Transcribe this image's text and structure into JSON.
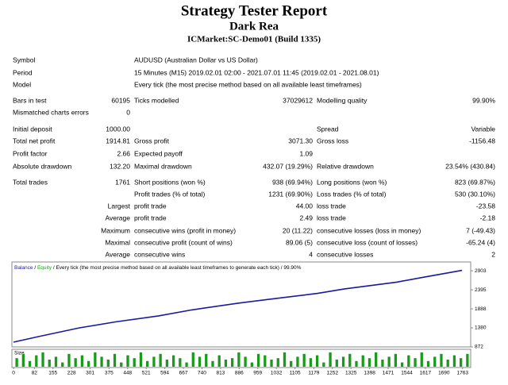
{
  "header": {
    "title": "Strategy Tester Report",
    "subtitle": "Dark Rea",
    "server": "ICMarket:SC-Demo01 (Build 1335)"
  },
  "table": {
    "rows": [
      [
        "Symbol",
        null,
        "AUDUSD (Australian Dollar vs US Dollar)",
        null,
        null,
        null
      ],
      [
        "Period",
        null,
        "15 Minutes (M15) 2019.02.01 02:00 - 2021.07.01 11:45 (2019.02.01 - 2021.08.01)",
        null,
        null,
        null
      ],
      [
        "Model",
        null,
        "Every tick (the most precise method based on all available least timeframes)",
        null,
        null,
        null
      ],
      [
        "Bars in test",
        "60195",
        "Ticks modelled",
        "37029612",
        "Modelling quality",
        "99.90%"
      ],
      [
        "Mismatched charts errors",
        "0",
        null,
        null,
        null,
        null
      ],
      [
        "Initial deposit",
        "1000.00",
        null,
        null,
        "Spread",
        "Variable"
      ],
      [
        "Total net profit",
        "1914.81",
        "Gross profit",
        "3071.30",
        "Gross loss",
        "-1156.48"
      ],
      [
        "Profit factor",
        "2.66",
        "Expected payoff",
        "1.09",
        null,
        null
      ],
      [
        "Absolute drawdown",
        "132.20",
        "Maximal drawdown",
        "432.07 (19.29%)",
        "Relative drawdown",
        "23.54% (430.84)"
      ],
      [
        "Total trades",
        "1761",
        "Short positions (won %)",
        "938 (69.94%)",
        "Long positions (won %)",
        "823 (69.87%)"
      ],
      [
        null,
        null,
        "Profit trades (% of total)",
        "1231 (69.90%)",
        "Loss trades (% of total)",
        "530 (30.10%)"
      ],
      [
        null,
        "Largest",
        "profit trade",
        "44.00",
        "loss trade",
        "-23.58"
      ],
      [
        null,
        "Average",
        "profit trade",
        "2.49",
        "loss trade",
        "-2.18"
      ],
      [
        null,
        "Maximum",
        "consecutive wins (profit in money)",
        "20 (11.22)",
        "consecutive losses (loss in money)",
        "7 (-49.43)"
      ],
      [
        null,
        "Maximal",
        "consecutive profit (count of wins)",
        "89.06 (5)",
        "consecutive loss (count of losses)",
        "-65.24 (4)"
      ],
      [
        null,
        "Average",
        "consecutive wins",
        "4",
        "consecutive losses",
        "2"
      ]
    ]
  },
  "chart": {
    "type": "line",
    "legend": {
      "balance": "Balance",
      "equity": "Equity",
      "separator": "/",
      "text": "Every tick (the most precise method based on all available least timeframes to generate each tick)",
      "quality": "99.90%"
    },
    "balance": {
      "name": "Balance",
      "color": "#1a1aa0",
      "x": [
        0,
        100,
        259,
        400,
        570,
        700,
        882,
        1000,
        1194,
        1300,
        1505,
        1600,
        1761
      ],
      "values": [
        1000,
        1150,
        1380,
        1540,
        1700,
        1860,
        2040,
        2140,
        2300,
        2420,
        2600,
        2720,
        2914
      ]
    },
    "xlim": [
      0,
      1795
    ],
    "ylim": [
      872,
      3139
    ],
    "yticks": [
      2903,
      2395,
      1888,
      1380,
      872
    ],
    "xticks": [
      0,
      82,
      155,
      228,
      301,
      375,
      448,
      521,
      594,
      667,
      740,
      813,
      886,
      959,
      1032,
      1105,
      1179,
      1252,
      1325,
      1398,
      1471,
      1544,
      1617,
      1690,
      1763
    ],
    "size": {
      "label": "Size",
      "color": "#1a9a1a",
      "values": [
        6,
        9,
        4,
        8,
        10,
        5,
        7,
        3,
        9,
        6,
        8,
        4,
        10,
        7,
        5,
        9,
        3,
        8,
        6,
        10,
        4,
        7,
        9,
        5,
        8,
        6,
        3,
        10,
        7,
        9,
        4,
        8,
        5,
        6,
        10,
        7,
        3,
        9,
        8,
        5,
        6,
        10,
        4,
        7,
        9,
        6,
        8,
        3,
        10,
        5,
        7,
        9,
        4,
        8,
        6,
        10,
        5,
        7,
        9,
        3,
        8,
        6,
        10,
        4,
        7,
        9,
        5,
        8,
        6,
        9
      ]
    }
  }
}
